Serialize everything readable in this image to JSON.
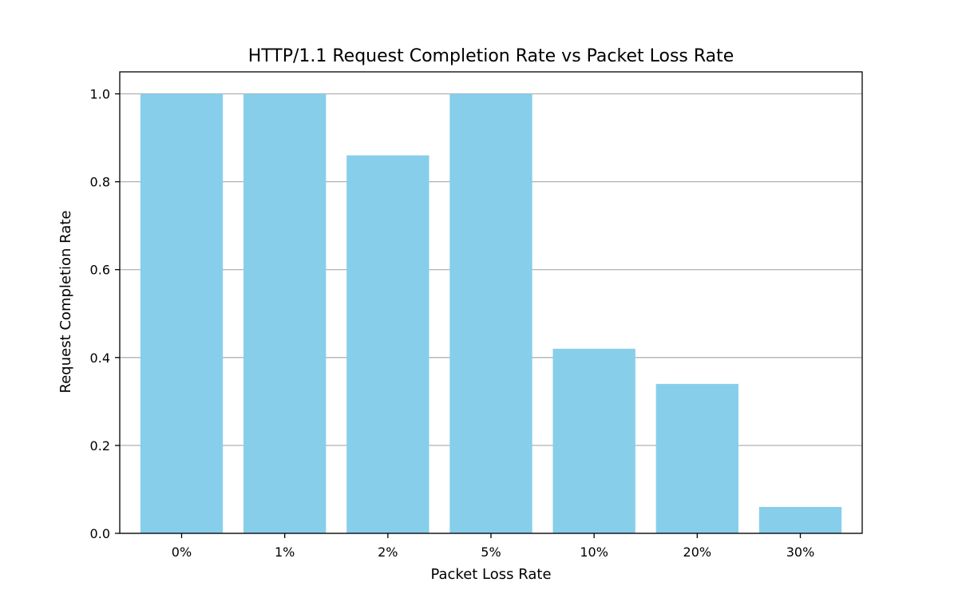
{
  "chart_data": {
    "type": "bar",
    "title": "HTTP/1.1 Request Completion Rate vs Packet Loss Rate",
    "xlabel": "Packet Loss Rate",
    "ylabel": "Request Completion Rate",
    "categories": [
      "0%",
      "1%",
      "2%",
      "5%",
      "10%",
      "20%",
      "30%"
    ],
    "values": [
      1.0,
      1.0,
      0.86,
      1.0,
      0.42,
      0.34,
      0.06
    ],
    "ylim": [
      0,
      1.05
    ],
    "yticks": [
      0.0,
      0.2,
      0.4,
      0.6,
      0.8,
      1.0
    ],
    "ytick_labels": [
      "0.0",
      "0.2",
      "0.4",
      "0.6",
      "0.8",
      "1.0"
    ],
    "grid": "y-major",
    "legend": "none",
    "colors": {
      "bar": "#87CEEB",
      "grid": "#b0b0b0",
      "axes": "#000000",
      "text": "#000000",
      "background": "#ffffff"
    }
  }
}
